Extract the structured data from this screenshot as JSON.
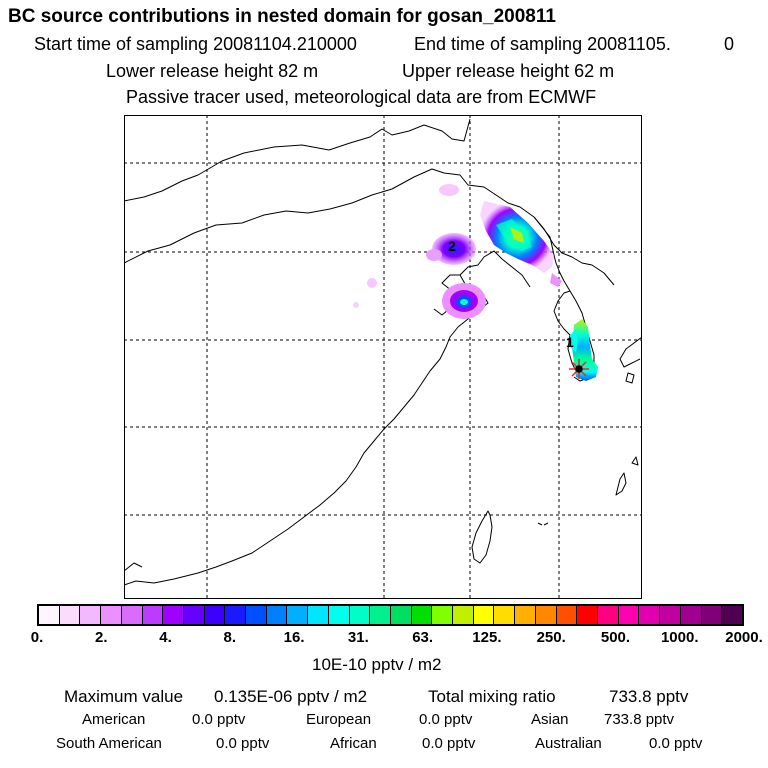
{
  "header": {
    "title": "BC  source contributions in nested domain for gosan_200811",
    "start_label": "Start time of sampling 20081104.210000",
    "end_label": "End time of sampling 20081105.",
    "end_value": "0",
    "lower_release": "Lower release height   82 m",
    "upper_release": "Upper release height   62 m",
    "tracer_note": "Passive tracer used, meteorological data are from ECMWF"
  },
  "map": {
    "markers": [
      "1",
      "2"
    ],
    "receptor_icon": "asterisk-receptor-icon"
  },
  "colorbar": {
    "colors": [
      "#fff5ff",
      "#fbdcff",
      "#f3b8ff",
      "#ec90ff",
      "#d96bff",
      "#bb3bff",
      "#a000ff",
      "#6600ff",
      "#3c00ff",
      "#1a1aff",
      "#0050ff",
      "#0080ff",
      "#00b0ff",
      "#00e6ff",
      "#00ffee",
      "#00ffc8",
      "#00f090",
      "#00e060",
      "#00e000",
      "#80ff00",
      "#c0f000",
      "#ffff00",
      "#ffdd00",
      "#ffb000",
      "#ff8800",
      "#ff5000",
      "#ff0000",
      "#ff0080",
      "#ff00b0",
      "#e000b0",
      "#c000a0",
      "#a00090",
      "#800078",
      "#500050"
    ],
    "ticks": [
      "0.",
      "2.",
      "4.",
      "8.",
      "16.",
      "31.",
      "63.",
      "125.",
      "250.",
      "500.",
      "1000.",
      "2000."
    ],
    "unit_label": "10E-10 pptv / m2"
  },
  "stats": {
    "max_label": "Maximum value",
    "max_value": "0.135E-06 pptv / m2",
    "total_label": "Total mixing ratio",
    "total_value": "733.8 pptv",
    "regions": [
      {
        "name": "American",
        "value": "0.0 pptv"
      },
      {
        "name": "European",
        "value": "0.0 pptv"
      },
      {
        "name": "Asian",
        "value": "733.8 pptv"
      },
      {
        "name": "South American",
        "value": "0.0 pptv"
      },
      {
        "name": "African",
        "value": "0.0 pptv"
      },
      {
        "name": "Australian",
        "value": "0.0 pptv"
      }
    ]
  }
}
